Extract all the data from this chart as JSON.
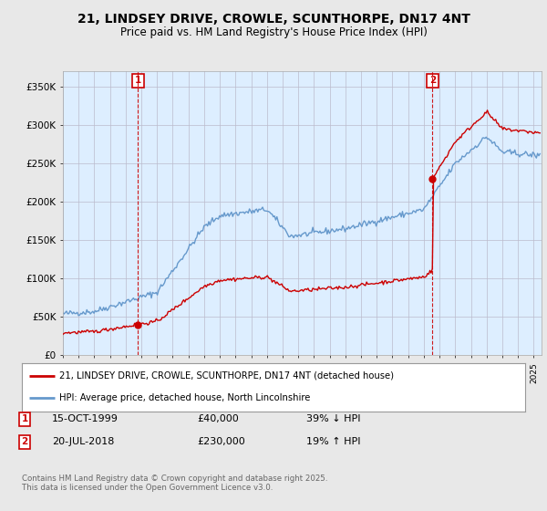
{
  "title": "21, LINDSEY DRIVE, CROWLE, SCUNTHORPE, DN17 4NT",
  "subtitle": "Price paid vs. HM Land Registry's House Price Index (HPI)",
  "ylim": [
    0,
    370000
  ],
  "yticks": [
    0,
    50000,
    100000,
    150000,
    200000,
    250000,
    300000,
    350000
  ],
  "ytick_labels": [
    "£0",
    "£50K",
    "£100K",
    "£150K",
    "£200K",
    "£250K",
    "£300K",
    "£350K"
  ],
  "background_color": "#e8e8e8",
  "plot_bg_color": "#ddeeff",
  "red_color": "#cc0000",
  "blue_color": "#6699cc",
  "transaction1": {
    "date_num": 1999.79,
    "price": 40000,
    "label": "1",
    "date_str": "15-OCT-1999",
    "amount_str": "£40,000",
    "hpi_str": "39% ↓ HPI"
  },
  "transaction2": {
    "date_num": 2018.55,
    "price": 230000,
    "label": "2",
    "date_str": "20-JUL-2018",
    "amount_str": "£230,000",
    "hpi_str": "19% ↑ HPI"
  },
  "legend_line1": "21, LINDSEY DRIVE, CROWLE, SCUNTHORPE, DN17 4NT (detached house)",
  "legend_line2": "HPI: Average price, detached house, North Lincolnshire",
  "footer": "Contains HM Land Registry data © Crown copyright and database right 2025.\nThis data is licensed under the Open Government Licence v3.0.",
  "title_fontsize": 10,
  "subtitle_fontsize": 8.5
}
